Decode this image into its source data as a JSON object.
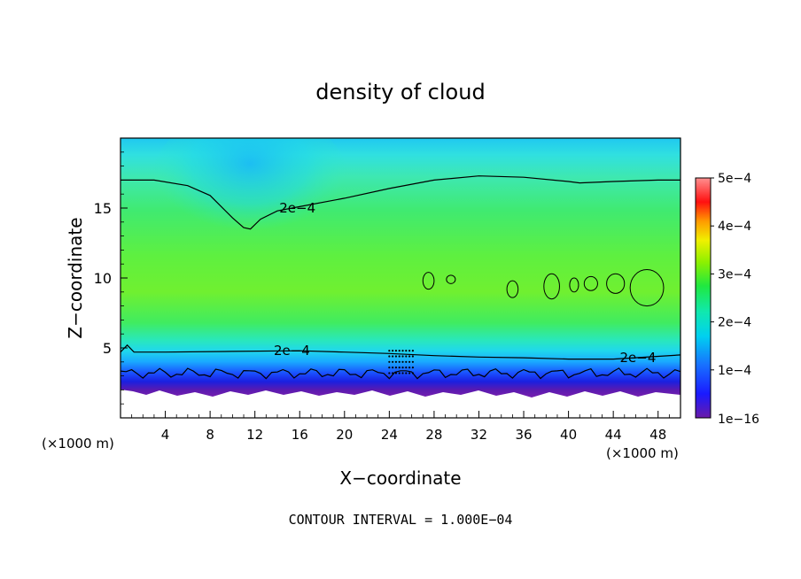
{
  "chart_data": {
    "type": "heatmap",
    "title": "density of cloud",
    "xlabel": "X−coordinate",
    "ylabel": "Z−coordinate",
    "x_unit_left": "(×1000 m)",
    "x_unit_right": "(×1000 m)",
    "xlim": [
      0,
      50
    ],
    "ylim": [
      0,
      20
    ],
    "x_ticks": [
      4,
      8,
      12,
      16,
      20,
      24,
      28,
      32,
      36,
      40,
      44,
      48
    ],
    "y_ticks": [
      5,
      10,
      15
    ],
    "colorbar": {
      "min_label": "1e−16",
      "tick_labels": [
        "1e−4",
        "2e−4",
        "3e−4",
        "4e−4",
        "5e−4"
      ],
      "tick_values": [
        0.0001,
        0.0002,
        0.0003,
        0.0004,
        0.0005
      ],
      "range": [
        0,
        0.0005
      ]
    },
    "contour_level": 0.0002,
    "contour_labels": [
      {
        "text": "2e−4",
        "x": 15.8,
        "z": 15.0
      },
      {
        "text": "2e−4",
        "x": 15.3,
        "z": 4.8
      },
      {
        "text": "2e−4",
        "x": 46.2,
        "z": 4.3
      }
    ],
    "upper_contour_2e4": [
      [
        0,
        17.0
      ],
      [
        3,
        17.0
      ],
      [
        6,
        16.6
      ],
      [
        8,
        15.9
      ],
      [
        10,
        14.3
      ],
      [
        11,
        13.6
      ],
      [
        11.6,
        13.5
      ],
      [
        12.5,
        14.2
      ],
      [
        14,
        14.8
      ],
      [
        16,
        15.1
      ],
      [
        20,
        15.7
      ],
      [
        24,
        16.4
      ],
      [
        28,
        17.0
      ],
      [
        32,
        17.3
      ],
      [
        36,
        17.2
      ],
      [
        40,
        16.9
      ],
      [
        41,
        16.8
      ],
      [
        44,
        16.9
      ],
      [
        48,
        17.0
      ],
      [
        50,
        17.0
      ]
    ],
    "lower_contour_2e4": [
      [
        0,
        4.7
      ],
      [
        0.6,
        5.2
      ],
      [
        1.2,
        4.7
      ],
      [
        4,
        4.7
      ],
      [
        10,
        4.75
      ],
      [
        16,
        4.8
      ],
      [
        20,
        4.7
      ],
      [
        24,
        4.6
      ],
      [
        28,
        4.45
      ],
      [
        32,
        4.35
      ],
      [
        36,
        4.3
      ],
      [
        40,
        4.2
      ],
      [
        44,
        4.2
      ],
      [
        48,
        4.4
      ],
      [
        50,
        4.5
      ]
    ],
    "annotation": "CONTOUR INTERVAL = 1.000E−04"
  }
}
